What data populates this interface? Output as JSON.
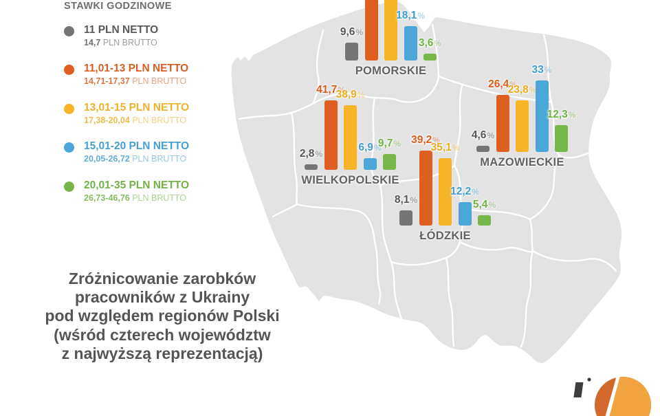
{
  "legend": {
    "title": "STAWKI GODZINOWE",
    "items": [
      {
        "key": "gray",
        "netto": "11 PLN NETTO",
        "brutto_value": "14,7",
        "brutto_suffix": " PLN BRUTTO",
        "color": "#747577",
        "text_color": "#58595b"
      },
      {
        "key": "orange",
        "netto": "11,01-13 PLN NETTO",
        "brutto_value": "14,71-17,37",
        "brutto_suffix": " PLN BRUTTO",
        "color": "#df5f20",
        "text_color": "#d95f21"
      },
      {
        "key": "yellow",
        "netto": "13,01-15 PLN NETTO",
        "brutto_value": "17,38-20,04",
        "brutto_suffix": " PLN BRUTTO",
        "color": "#f6b426",
        "text_color": "#efb02a"
      },
      {
        "key": "blue",
        "netto": "15,01-20 PLN NETTO",
        "brutto_value": "20,05-26,72",
        "brutto_suffix": " PLN BRUTTO",
        "color": "#4ba7d7",
        "text_color": "#459fd0"
      },
      {
        "key": "green",
        "netto": "20,01-35 PLN NETTO",
        "brutto_value": "26,73-46,76",
        "brutto_suffix": " PLN BRUTTO",
        "color": "#77b74a",
        "text_color": "#72b145"
      }
    ]
  },
  "title_lines": [
    "Zróżnicowanie zarobków",
    "pracowników z Ukrainy",
    "pod względem regionów Polski",
    "(wśród czterech województw",
    "z najwyższą reprezentacją)"
  ],
  "chart_data": {
    "type": "bar",
    "unit": "%",
    "title": "Zróżnicowanie zarobków pracowników z Ukrainy pod względem regionów Polski (wśród czterech województw z najwyższą reprezentacją)",
    "categories": [
      "11 PLN netto",
      "11,01-13 PLN netto",
      "13,01-15 PLN netto",
      "15,01-20 PLN netto",
      "20,01-35 PLN netto"
    ],
    "series_colors": [
      "#747577",
      "#df5f20",
      "#f6b426",
      "#4ba7d7",
      "#77b74a"
    ],
    "regions": [
      {
        "name": "POMORSKIE",
        "values": [
          9.6,
          null,
          null,
          18.1,
          3.6
        ],
        "labels": [
          "9,6",
          "",
          "",
          "18,1",
          "3,6"
        ],
        "clipped_bars": [
          1,
          2
        ]
      },
      {
        "name": "WIELKOPOLSKIE",
        "values": [
          2.8,
          41.7,
          38.9,
          6.9,
          9.7
        ],
        "labels": [
          "2,8",
          "41,7",
          "38,9",
          "6,9",
          "9,7"
        ],
        "clipped_bars": []
      },
      {
        "name": "ŁÓDZKIE",
        "values": [
          8.1,
          39.2,
          35.1,
          12.2,
          5.4
        ],
        "labels": [
          "8,1",
          "39,2",
          "35,1",
          "12,2",
          "5,4"
        ],
        "clipped_bars": []
      },
      {
        "name": "MAZOWIECKIE",
        "values": [
          4.6,
          26.4,
          23.8,
          33,
          12.3
        ],
        "labels": [
          "4,6",
          "26,4",
          "23,8",
          "33",
          "12,3"
        ],
        "clipped_bars": []
      }
    ]
  },
  "label_colors": {
    "gray": "#55565a",
    "orange": "#da5c1e",
    "yellow": "#eeac1c",
    "blue": "#3f9fd2",
    "green": "#6fb343"
  },
  "map": {
    "land_color": "#e3e3e4",
    "border_color": "#ffffff"
  },
  "logo_colors": {
    "dark": "#3d3d3f",
    "orange_left": "#d2682c",
    "orange_right": "#f0a33e"
  }
}
